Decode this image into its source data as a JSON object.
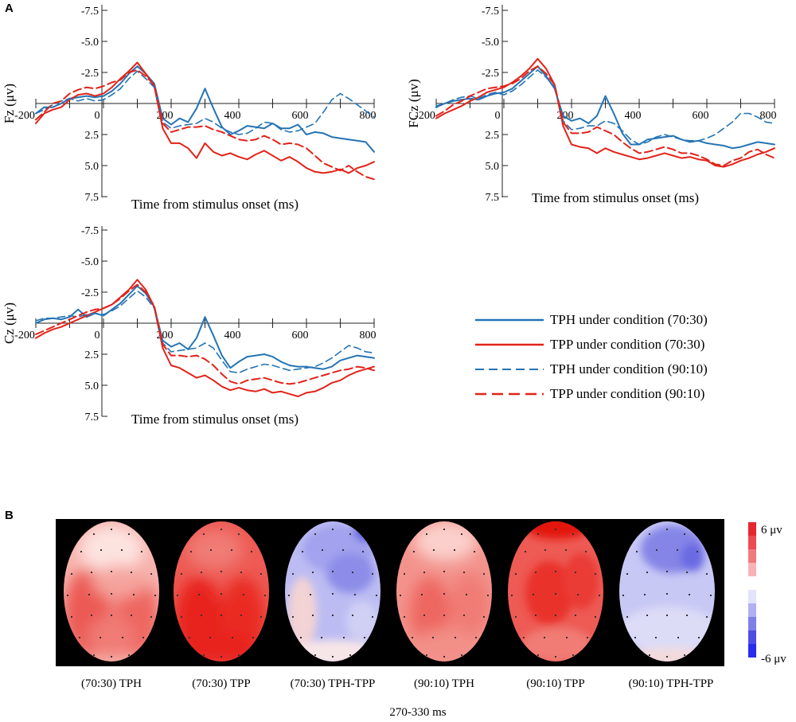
{
  "panel_a_label": "A",
  "panel_b_label": "B",
  "colors": {
    "tph": "#2474b5",
    "tpp": "#e2231a",
    "map_bg": "#000000",
    "scale_pos": "#e8262d",
    "scale_neg": "#2b2bf0"
  },
  "chart_data": [
    {
      "type": "line",
      "id": "fz",
      "ylabel": "Fz (μv)",
      "xlabel": "Time from stimulus onset (ms)",
      "xlim": [
        -200,
        800
      ],
      "ylim": [
        -7.5,
        7.5
      ],
      "y_inverted": true,
      "xticks": [
        -200,
        0,
        200,
        400,
        600,
        800
      ],
      "yticks": [
        -7.5,
        -5.0,
        -2.5,
        2.5,
        5.0,
        7.5
      ],
      "ytick_labels": [
        "-7.5",
        "-5.0",
        "-2.5",
        "2.5",
        "5.0",
        "7.5"
      ],
      "x": [
        -200,
        -175,
        -150,
        -125,
        -100,
        -75,
        -50,
        -25,
        0,
        25,
        50,
        75,
        100,
        125,
        150,
        175,
        200,
        225,
        250,
        275,
        300,
        325,
        350,
        375,
        400,
        425,
        450,
        475,
        500,
        525,
        550,
        575,
        600,
        625,
        650,
        675,
        700,
        725,
        750,
        775,
        800
      ],
      "series": [
        {
          "name": "TPH under condition (70:30)",
          "style": "solid",
          "values": [
            0.8,
            0.3,
            0.3,
            0.0,
            -0.4,
            -0.5,
            -0.6,
            -0.5,
            -0.6,
            -1.0,
            -1.6,
            -2.4,
            -3.0,
            -2.4,
            -1.6,
            1.2,
            1.7,
            1.2,
            1.5,
            0.4,
            -1.2,
            0.4,
            1.9,
            2.5,
            2.2,
            1.8,
            1.9,
            2.0,
            1.6,
            2.0,
            2.0,
            1.7,
            2.5,
            2.3,
            2.4,
            2.7,
            2.8,
            2.9,
            3.0,
            3.1,
            3.9
          ]
        },
        {
          "name": "TPP under condition (70:30)",
          "style": "solid",
          "values": [
            1.6,
            0.8,
            0.5,
            0.3,
            -0.3,
            -0.7,
            -0.8,
            -0.6,
            -0.8,
            -1.3,
            -2.0,
            -2.6,
            -3.3,
            -2.4,
            -1.4,
            2.0,
            3.2,
            3.2,
            3.6,
            4.4,
            3.2,
            3.9,
            4.2,
            4.0,
            4.3,
            4.5,
            4.1,
            3.8,
            4.2,
            4.6,
            4.3,
            4.7,
            5.2,
            5.5,
            5.6,
            5.5,
            5.3,
            5.6,
            5.2,
            5.0,
            4.7
          ]
        },
        {
          "name": "TPH under condition (90:10)",
          "style": "dashed",
          "values": [
            0.8,
            0.5,
            0.1,
            -0.2,
            -0.4,
            -0.2,
            -0.4,
            -0.2,
            -0.3,
            -0.7,
            -1.2,
            -2.0,
            -2.6,
            -2.0,
            -1.3,
            1.5,
            2.0,
            1.8,
            1.7,
            1.6,
            1.2,
            1.5,
            2.0,
            2.3,
            2.5,
            2.4,
            2.0,
            1.5,
            1.6,
            2.1,
            2.3,
            2.2,
            1.9,
            1.6,
            0.7,
            -0.3,
            -0.8,
            -0.4,
            0.1,
            0.6,
            1.1
          ]
        },
        {
          "name": "TPP under condition (90:10)",
          "style": "dashed",
          "values": [
            1.3,
            0.7,
            0.0,
            -0.2,
            -0.8,
            -1.1,
            -1.3,
            -1.2,
            -1.4,
            -1.7,
            -1.9,
            -2.5,
            -2.7,
            -2.2,
            -1.5,
            1.6,
            2.3,
            2.1,
            1.9,
            1.9,
            1.8,
            2.1,
            2.3,
            2.6,
            2.9,
            3.0,
            2.9,
            2.6,
            2.9,
            3.3,
            3.2,
            3.3,
            3.6,
            4.2,
            4.8,
            5.1,
            5.4,
            5.0,
            5.5,
            5.9,
            6.1
          ]
        }
      ]
    },
    {
      "type": "line",
      "id": "fcz",
      "ylabel": "FCz (μv)",
      "xlabel": "Time from stimulus onset (ms)",
      "xlim": [
        -200,
        800
      ],
      "ylim": [
        -7.5,
        7.5
      ],
      "y_inverted": true,
      "xticks": [
        -200,
        0,
        200,
        400,
        600,
        800
      ],
      "yticks": [
        -7.5,
        -5.0,
        -2.5,
        2.5,
        5.0,
        7.5
      ],
      "ytick_labels": [
        "-7.5",
        "-5.0",
        "-2.5",
        "2.5",
        "5.0",
        "7.5"
      ],
      "x": [
        -200,
        -175,
        -150,
        -125,
        -100,
        -75,
        -50,
        -25,
        0,
        25,
        50,
        75,
        100,
        125,
        150,
        175,
        200,
        225,
        250,
        275,
        300,
        325,
        350,
        375,
        400,
        425,
        450,
        475,
        500,
        525,
        550,
        575,
        600,
        625,
        650,
        675,
        700,
        725,
        750,
        775,
        800
      ],
      "series": [
        {
          "name": "TPH under condition (70:30)",
          "style": "solid",
          "values": [
            0.3,
            0.0,
            -0.2,
            -0.3,
            -0.4,
            -0.3,
            -0.6,
            -0.8,
            -0.9,
            -1.2,
            -1.8,
            -2.4,
            -3.0,
            -2.2,
            -1.2,
            1.0,
            1.4,
            1.2,
            1.6,
            1.0,
            -0.6,
            0.8,
            2.4,
            3.3,
            3.3,
            2.9,
            2.8,
            2.7,
            2.6,
            2.9,
            3.1,
            3.0,
            3.2,
            3.3,
            3.4,
            3.6,
            3.5,
            3.3,
            3.1,
            3.2,
            3.3
          ]
        },
        {
          "name": "TPP under condition (70:30)",
          "style": "solid",
          "values": [
            1.2,
            0.8,
            0.5,
            0.2,
            -0.2,
            -0.5,
            -0.9,
            -1.1,
            -1.3,
            -1.7,
            -2.2,
            -2.8,
            -3.6,
            -2.8,
            -1.5,
            1.8,
            3.3,
            3.5,
            3.6,
            4.0,
            3.6,
            3.9,
            4.1,
            4.3,
            4.5,
            4.4,
            4.2,
            4.0,
            4.2,
            4.4,
            4.3,
            4.5,
            4.6,
            5.0,
            5.1,
            4.9,
            4.6,
            4.4,
            4.1,
            3.9,
            3.6
          ]
        },
        {
          "name": "TPH under condition (90:10)",
          "style": "dashed",
          "values": [
            0.2,
            0.0,
            -0.3,
            -0.5,
            -0.6,
            -0.4,
            -0.7,
            -0.9,
            -0.7,
            -1.0,
            -1.5,
            -2.1,
            -2.7,
            -2.1,
            -1.3,
            1.4,
            2.1,
            2.0,
            1.8,
            1.8,
            1.4,
            1.6,
            2.2,
            2.9,
            3.3,
            3.1,
            2.7,
            2.5,
            2.7,
            2.9,
            3.0,
            3.0,
            2.8,
            2.5,
            2.0,
            1.5,
            0.8,
            0.8,
            1.1,
            1.5,
            1.6
          ]
        },
        {
          "name": "TPP under condition (90:10)",
          "style": "dashed",
          "values": [
            1.0,
            0.6,
            0.1,
            -0.2,
            -0.6,
            -0.9,
            -1.2,
            -1.3,
            -1.4,
            -1.6,
            -2.0,
            -2.6,
            -3.0,
            -2.4,
            -1.5,
            1.5,
            2.4,
            2.4,
            2.3,
            1.9,
            2.2,
            2.5,
            3.1,
            3.6,
            4.0,
            3.9,
            3.7,
            3.5,
            3.7,
            4.0,
            4.0,
            4.2,
            4.5,
            4.9,
            5.0,
            4.6,
            4.4,
            3.9,
            3.7,
            4.1,
            4.4
          ]
        }
      ]
    },
    {
      "type": "line",
      "id": "cz",
      "ylabel": "Cz (μv)",
      "xlabel": "Time from stimulus onset (ms)",
      "xlim": [
        -200,
        800
      ],
      "ylim": [
        -7.5,
        7.5
      ],
      "y_inverted": true,
      "xticks": [
        -200,
        0,
        200,
        400,
        600,
        800
      ],
      "yticks": [
        -7.5,
        -5.0,
        -2.5,
        2.5,
        5.0,
        7.5
      ],
      "ytick_labels": [
        "-7.5",
        "-5.0",
        "-2.5",
        "2.5",
        "5.0",
        "7.5"
      ],
      "x": [
        -200,
        -175,
        -150,
        -125,
        -100,
        -75,
        -50,
        -25,
        0,
        25,
        50,
        75,
        100,
        125,
        150,
        175,
        200,
        225,
        250,
        275,
        300,
        325,
        350,
        375,
        400,
        425,
        450,
        475,
        500,
        525,
        550,
        575,
        600,
        625,
        650,
        675,
        700,
        725,
        750,
        775,
        800
      ],
      "series": [
        {
          "name": "TPH under condition (70:30)",
          "style": "solid",
          "values": [
            0.0,
            -0.3,
            -0.4,
            -0.3,
            -0.5,
            -1.1,
            -0.5,
            -0.8,
            -0.6,
            -1.1,
            -1.6,
            -2.3,
            -3.0,
            -2.4,
            -1.3,
            1.4,
            1.9,
            1.6,
            2.1,
            1.2,
            -0.5,
            1.0,
            2.6,
            3.6,
            3.1,
            2.7,
            2.6,
            2.5,
            2.7,
            3.1,
            3.4,
            3.5,
            3.5,
            3.6,
            3.7,
            3.5,
            3.0,
            2.8,
            2.6,
            2.7,
            2.8
          ]
        },
        {
          "name": "TPP under condition (70:30)",
          "style": "solid",
          "values": [
            1.2,
            0.8,
            0.5,
            0.3,
            0.0,
            -0.3,
            -0.6,
            -0.9,
            -1.2,
            -1.5,
            -2.1,
            -2.7,
            -3.5,
            -2.7,
            -1.3,
            2.0,
            3.4,
            3.6,
            4.0,
            4.4,
            4.2,
            4.6,
            5.1,
            5.4,
            5.2,
            5.4,
            5.5,
            5.3,
            5.6,
            5.5,
            5.7,
            5.9,
            5.6,
            5.5,
            5.2,
            4.8,
            4.6,
            4.2,
            3.9,
            3.7,
            3.5
          ]
        },
        {
          "name": "TPH under condition (90:10)",
          "style": "dashed",
          "values": [
            -0.2,
            -0.4,
            -0.4,
            -0.5,
            -0.6,
            -0.5,
            -0.7,
            -0.8,
            -0.7,
            -1.0,
            -1.4,
            -2.0,
            -2.6,
            -2.1,
            -1.2,
            1.6,
            2.3,
            2.2,
            2.1,
            2.0,
            1.6,
            2.0,
            3.0,
            3.9,
            4.0,
            3.7,
            3.5,
            3.3,
            3.4,
            3.6,
            3.8,
            3.7,
            3.6,
            3.5,
            3.2,
            2.8,
            2.3,
            1.8,
            2.0,
            2.3,
            2.4
          ]
        },
        {
          "name": "TPP under condition (90:10)",
          "style": "dashed",
          "values": [
            0.9,
            0.6,
            0.3,
            0.0,
            -0.3,
            -0.6,
            -0.9,
            -1.1,
            -1.2,
            -1.5,
            -2.0,
            -2.6,
            -3.1,
            -2.5,
            -1.4,
            1.7,
            2.6,
            2.6,
            2.7,
            2.6,
            2.9,
            3.4,
            4.1,
            4.7,
            4.9,
            4.6,
            4.5,
            4.4,
            4.6,
            4.8,
            4.9,
            4.8,
            4.6,
            4.4,
            4.2,
            4.0,
            3.8,
            3.7,
            3.5,
            3.6,
            3.8
          ]
        }
      ]
    },
    {
      "type": "heatmap",
      "id": "topomaps",
      "title": "270-330 ms",
      "maps": [
        {
          "label": "(70:30) TPH",
          "mean_uv": 2.6
        },
        {
          "label": "(70:30) TPP",
          "mean_uv": 4.4
        },
        {
          "label": "(70:30) TPH-TPP",
          "mean_uv": -1.8
        },
        {
          "label": "(90:10) TPH",
          "mean_uv": 2.4
        },
        {
          "label": "(90:10) TPP",
          "mean_uv": 4.1
        },
        {
          "label": "(90:10) TPH-TPP",
          "mean_uv": -1.6
        }
      ],
      "colorbar": {
        "max_label": "6 μv",
        "min_label": "-6 μv",
        "range": [
          -6,
          6
        ]
      }
    }
  ]
}
